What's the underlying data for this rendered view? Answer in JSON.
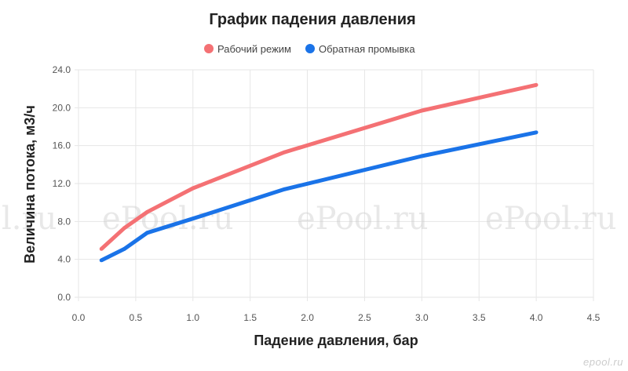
{
  "chart_data": {
    "type": "line",
    "title": "График падения давления",
    "xlabel": "Падение давления, бар",
    "ylabel": "Величина потока, м3/ч",
    "xlim": [
      0,
      4.5
    ],
    "ylim": [
      0,
      24
    ],
    "x_ticks": [
      "0.0",
      "0.5",
      "1.0",
      "1.5",
      "2.0",
      "2.5",
      "3.0",
      "3.5",
      "4.0",
      "4.5"
    ],
    "y_ticks": [
      "0.0",
      "4.0",
      "8.0",
      "12.0",
      "16.0",
      "20.0",
      "24.0"
    ],
    "grid": true,
    "legend": "top-center",
    "series": [
      {
        "name": "Рабочий режим",
        "color": "#f47174",
        "x": [
          0.2,
          0.4,
          0.6,
          1.0,
          1.8,
          3.0,
          4.0
        ],
        "y": [
          5.1,
          7.3,
          9.0,
          11.5,
          15.3,
          19.7,
          22.4
        ]
      },
      {
        "name": "Обратная промывка",
        "color": "#1a73e8",
        "x": [
          0.2,
          0.4,
          0.6,
          1.0,
          1.8,
          3.0,
          4.0
        ],
        "y": [
          3.9,
          5.1,
          6.8,
          8.3,
          11.4,
          14.9,
          17.4
        ]
      }
    ]
  },
  "watermark": {
    "text": "ePool.ru",
    "text_left_cut": "l.ru",
    "logo": "epool.ru"
  }
}
